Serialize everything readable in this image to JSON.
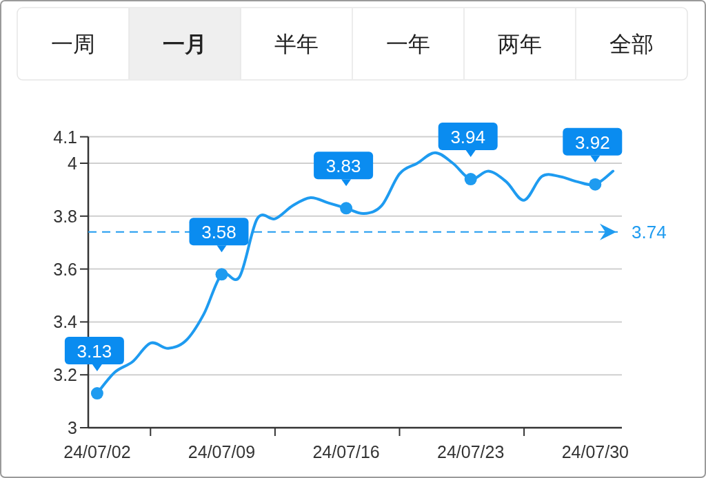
{
  "chart_data": {
    "type": "line",
    "annotations": [
      "一周",
      "一月",
      "半年",
      "一年",
      "两年",
      "全部"
    ],
    "categories": [
      "24/07/02",
      null,
      null,
      null,
      null,
      null,
      null,
      "24/07/09",
      null,
      null,
      null,
      null,
      null,
      null,
      "24/07/16",
      null,
      null,
      null,
      null,
      null,
      null,
      "24/07/23",
      null,
      null,
      null,
      null,
      null,
      null,
      "24/07/30",
      null
    ],
    "series": [
      {
        "color": "#1e9bf0",
        "values": [
          3.13,
          3.21,
          3.25,
          3.32,
          3.3,
          3.33,
          3.43,
          3.58,
          3.57,
          3.79,
          3.79,
          3.84,
          3.87,
          3.85,
          3.83,
          3.81,
          3.84,
          3.96,
          4.0,
          4.04,
          4.0,
          3.94,
          3.97,
          3.93,
          3.86,
          3.95,
          3.95,
          3.93,
          3.92,
          3.97
        ],
        "line_style": "solid"
      },
      {
        "type": "scatter",
        "color": "#1e9bf0",
        "marker": "circle",
        "values": [
          3.13,
          null,
          null,
          null,
          null,
          null,
          null,
          3.58,
          null,
          null,
          null,
          null,
          null,
          null,
          3.83,
          null,
          null,
          null,
          null,
          null,
          null,
          3.94,
          null,
          null,
          null,
          null,
          null,
          null,
          3.92,
          null
        ],
        "value_labels": [
          "3.13",
          null,
          null,
          null,
          null,
          null,
          null,
          "3.58",
          null,
          null,
          null,
          null,
          null,
          null,
          "3.83",
          null,
          null,
          null,
          null,
          null,
          null,
          "3.94",
          null,
          null,
          null,
          null,
          null,
          null,
          "3.92",
          null
        ]
      }
    ],
    "ylim": [
      3,
      4.1
    ],
    "yticks": [
      3,
      3.2,
      3.4,
      3.6,
      3.8,
      4,
      4.1
    ],
    "grid": "y",
    "ref_lines": [
      {
        "axis": "y",
        "value": 3.74,
        "label": "3.74",
        "color": "#1e9bf0",
        "line_style": "dashed"
      }
    ]
  }
}
